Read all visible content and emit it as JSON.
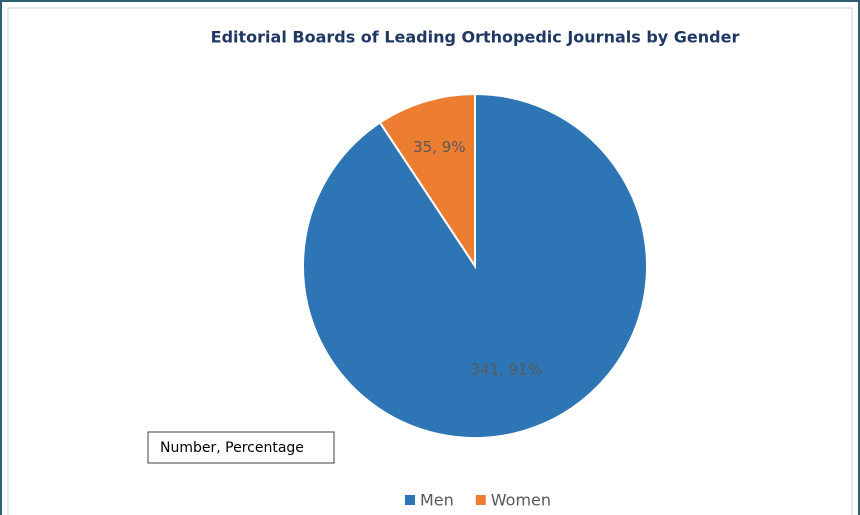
{
  "chart_data": {
    "type": "pie",
    "title": "Editorial Boards of Leading Orthopedic Journals by Gender",
    "categories": [
      "Men",
      "Women"
    ],
    "values": [
      341,
      35
    ],
    "value_labels": [
      "341, 91%",
      "35, 9%"
    ],
    "colors": [
      "#2e75b6",
      "#ed7d31"
    ],
    "annotation": "Number, Percentage",
    "legend": "bottom"
  }
}
